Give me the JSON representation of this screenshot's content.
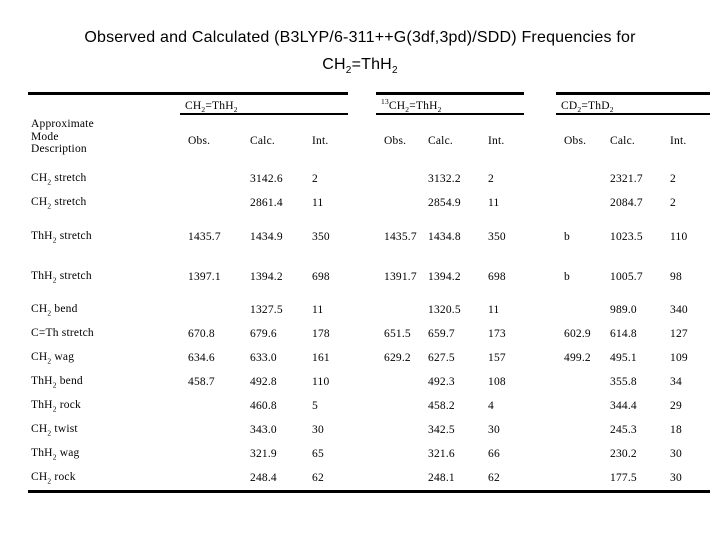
{
  "slide": {
    "background_color": "#ffffff",
    "text_color": "#000000"
  },
  "title": {
    "line1": "Observed and Calculated (B3LYP/6-311++G(3df,3pd)/SDD) Frequencies for",
    "formula": {
      "base1": "CH",
      "sub1": "2",
      "base2": "=ThH",
      "sub2": "2"
    }
  },
  "table": {
    "row_header_lines": [
      "Approximate",
      "Mode",
      "Description"
    ],
    "groups": [
      {
        "sup": "",
        "base1": "CH",
        "sub1": "2",
        "base2": "=ThH",
        "sub2": "2",
        "columns": [
          "Obs.",
          "Calc.",
          "Int."
        ]
      },
      {
        "sup": "13",
        "base1": "CH",
        "sub1": "2",
        "base2": "=ThH",
        "sub2": "2",
        "columns": [
          "Obs.",
          "Calc.",
          "Int."
        ]
      },
      {
        "sup": "",
        "base1": "CD",
        "sub1": "2",
        "base2": "=ThD",
        "sub2": "2",
        "columns": [
          "Obs.",
          "Calc.",
          "Int."
        ]
      }
    ],
    "rows": [
      {
        "mode": {
          "base": "CH",
          "sub": "2",
          "rest": " stretch"
        },
        "cells": [
          "",
          "3142.6",
          "2",
          "",
          "3132.2",
          "2",
          "",
          "2321.7",
          "2"
        ]
      },
      {
        "mode": {
          "base": "CH",
          "sub": "2",
          "rest": " stretch"
        },
        "cells": [
          "",
          "2861.4",
          "11",
          "",
          "2854.9",
          "11",
          "",
          "2084.7",
          "2"
        ]
      },
      {
        "mode": {
          "base": "ThH",
          "sub": "2",
          "rest": " stretch"
        },
        "cells": [
          "1435.7",
          "1434.9",
          "350",
          "1435.7",
          "1434.8",
          "350",
          "b",
          "1023.5",
          "110"
        ]
      },
      {
        "mode": {
          "base": "ThH",
          "sub": "2",
          "rest": " stretch"
        },
        "cells": [
          "1397.1",
          "1394.2",
          "698",
          "1391.7",
          "1394.2",
          "698",
          "b",
          "1005.7",
          "98"
        ]
      },
      {
        "mode": {
          "base": "CH",
          "sub": "2",
          "rest": " bend"
        },
        "cells": [
          "",
          "1327.5",
          "11",
          "",
          "1320.5",
          "11",
          "",
          "989.0",
          "340"
        ]
      },
      {
        "mode": {
          "base": "C=Th",
          "sub": "",
          "rest": " stretch"
        },
        "cells": [
          "670.8",
          "679.6",
          "178",
          "651.5",
          "659.7",
          "173",
          "602.9",
          "614.8",
          "127"
        ]
      },
      {
        "mode": {
          "base": "CH",
          "sub": "2",
          "rest": " wag"
        },
        "cells": [
          "634.6",
          "633.0",
          "161",
          "629.2",
          "627.5",
          "157",
          "499.2",
          "495.1",
          "109"
        ]
      },
      {
        "mode": {
          "base": "ThH",
          "sub": "2",
          "rest": " bend"
        },
        "cells": [
          "458.7",
          "492.8",
          "110",
          "",
          "492.3",
          "108",
          "",
          "355.8",
          "34"
        ]
      },
      {
        "mode": {
          "base": "ThH",
          "sub": "2",
          "rest": " rock"
        },
        "cells": [
          "",
          "460.8",
          "5",
          "",
          "458.2",
          "4",
          "",
          "344.4",
          "29"
        ]
      },
      {
        "mode": {
          "base": "CH",
          "sub": "2",
          "rest": " twist"
        },
        "cells": [
          "",
          "343.0",
          "30",
          "",
          "342.5",
          "30",
          "",
          "245.3",
          "18"
        ]
      },
      {
        "mode": {
          "base": "ThH",
          "sub": "2",
          "rest": " wag"
        },
        "cells": [
          "",
          "321.9",
          "65",
          "",
          "321.6",
          "66",
          "",
          "230.2",
          "30"
        ]
      },
      {
        "mode": {
          "base": "CH",
          "sub": "2",
          "rest": " rock"
        },
        "cells": [
          "",
          "248.4",
          "62",
          "",
          "248.1",
          "62",
          "",
          "177.5",
          "30"
        ]
      }
    ]
  }
}
